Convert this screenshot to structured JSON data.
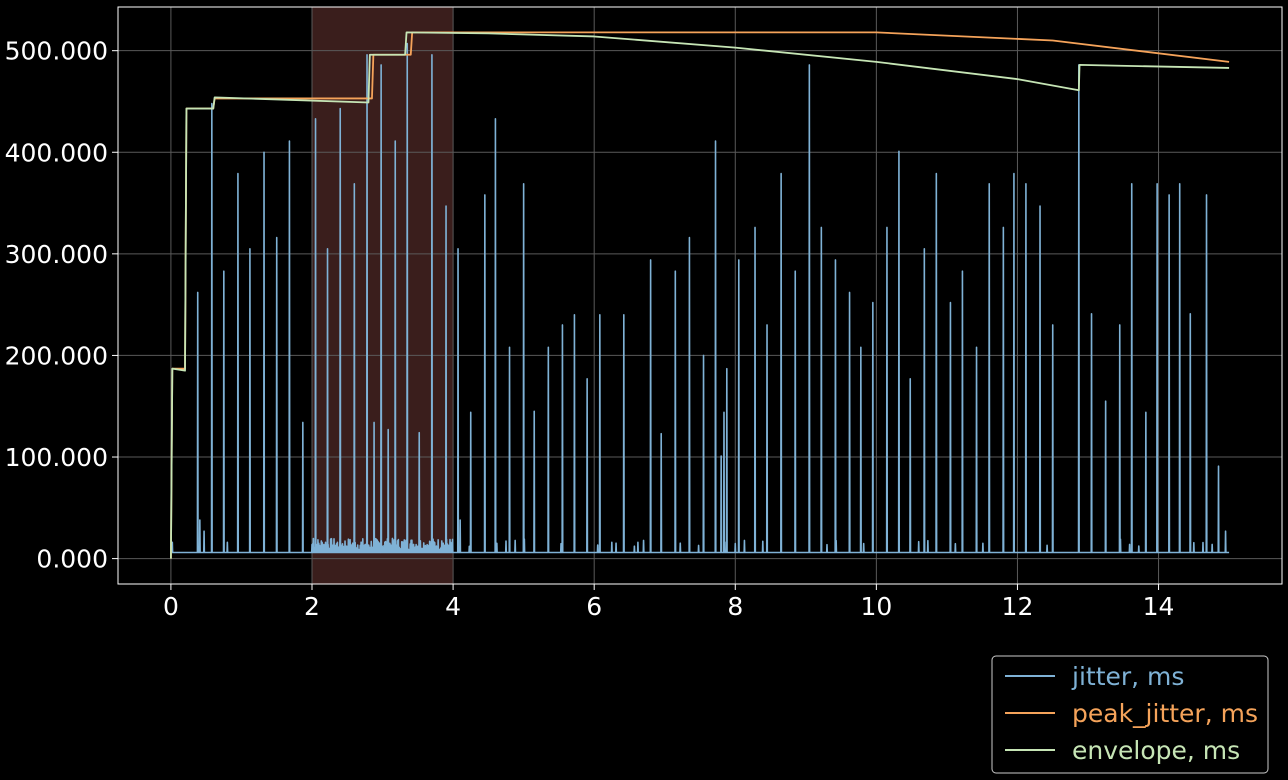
{
  "chart_data": {
    "type": "line",
    "title": "",
    "xlabel": "",
    "ylabel": "",
    "xlim": [
      -0.75,
      15.75
    ],
    "ylim": [
      -25,
      543
    ],
    "x_ticks": [
      0,
      2,
      4,
      6,
      8,
      10,
      12,
      14
    ],
    "x_tick_labels": [
      "0",
      "2",
      "4",
      "6",
      "8",
      "10",
      "12",
      "14"
    ],
    "y_ticks": [
      0,
      100,
      200,
      300,
      400,
      500
    ],
    "y_tick_labels": [
      "0.000",
      "100.000",
      "200.000",
      "300.000",
      "400.000",
      "500.000"
    ],
    "grid": true,
    "background": "#000000",
    "highlight_region": {
      "x_start": 2,
      "x_end": 4,
      "color": "#3a1e1c"
    },
    "legend_position": "below-right",
    "series": [
      {
        "name": "jitter, ms",
        "color": "#7fb2d6",
        "baseline": 6,
        "spikes": [
          [
            0.02,
            16
          ],
          [
            0.38,
            262
          ],
          [
            0.41,
            38
          ],
          [
            0.47,
            27
          ],
          [
            0.58,
            448
          ],
          [
            0.75,
            283
          ],
          [
            0.8,
            16
          ],
          [
            0.95,
            379
          ],
          [
            1.12,
            305
          ],
          [
            1.32,
            400
          ],
          [
            1.5,
            316
          ],
          [
            1.68,
            411
          ],
          [
            1.87,
            134
          ],
          [
            2.05,
            433
          ],
          [
            2.22,
            305
          ],
          [
            2.4,
            443
          ],
          [
            2.6,
            369
          ],
          [
            2.78,
            496
          ],
          [
            2.88,
            134
          ],
          [
            2.98,
            486
          ],
          [
            3.08,
            127
          ],
          [
            3.18,
            411
          ],
          [
            3.35,
            507
          ],
          [
            3.52,
            124
          ],
          [
            3.7,
            496
          ],
          [
            3.9,
            347
          ],
          [
            4.07,
            305
          ],
          [
            4.1,
            38
          ],
          [
            4.25,
            144
          ],
          [
            4.45,
            358
          ],
          [
            4.6,
            433
          ],
          [
            4.8,
            208
          ],
          [
            5.0,
            369
          ],
          [
            5.15,
            145
          ],
          [
            5.35,
            208
          ],
          [
            5.55,
            230
          ],
          [
            5.72,
            240
          ],
          [
            5.9,
            177
          ],
          [
            6.08,
            240
          ],
          [
            6.25,
            16
          ],
          [
            6.42,
            240
          ],
          [
            6.62,
            16
          ],
          [
            6.8,
            294
          ],
          [
            6.95,
            123
          ],
          [
            7.15,
            283
          ],
          [
            7.35,
            316
          ],
          [
            7.55,
            200
          ],
          [
            7.72,
            411
          ],
          [
            7.8,
            101
          ],
          [
            7.84,
            144
          ],
          [
            7.88,
            187
          ],
          [
            8.05,
            294
          ],
          [
            8.28,
            326
          ],
          [
            8.45,
            230
          ],
          [
            8.65,
            379
          ],
          [
            8.85,
            283
          ],
          [
            9.05,
            486
          ],
          [
            9.22,
            326
          ],
          [
            9.42,
            294
          ],
          [
            9.62,
            262
          ],
          [
            9.78,
            208
          ],
          [
            9.95,
            252
          ],
          [
            10.15,
            326
          ],
          [
            10.32,
            401
          ],
          [
            10.48,
            177
          ],
          [
            10.68,
            305
          ],
          [
            10.85,
            379
          ],
          [
            11.05,
            252
          ],
          [
            11.22,
            283
          ],
          [
            11.42,
            208
          ],
          [
            11.6,
            369
          ],
          [
            11.8,
            326
          ],
          [
            11.95,
            379
          ],
          [
            12.12,
            369
          ],
          [
            12.32,
            347
          ],
          [
            12.5,
            230
          ],
          [
            12.87,
            486
          ],
          [
            13.05,
            241
          ],
          [
            13.25,
            155
          ],
          [
            13.45,
            230
          ],
          [
            13.62,
            369
          ],
          [
            13.82,
            144
          ],
          [
            13.98,
            369
          ],
          [
            14.15,
            358
          ],
          [
            14.3,
            369
          ],
          [
            14.45,
            241
          ],
          [
            14.68,
            358
          ],
          [
            14.85,
            91
          ],
          [
            14.95,
            27
          ]
        ],
        "burst_region": [
          2.0,
          4.0
        ]
      },
      {
        "name": "peak_jitter, ms",
        "color": "#f5a35a",
        "x": [
          0,
          0.02,
          0.2,
          0.22,
          0.6,
          0.62,
          2.85,
          2.87,
          3.4,
          3.42,
          10,
          12.5,
          15
        ],
        "y": [
          0,
          187,
          187,
          443,
          443,
          453,
          453,
          496,
          496,
          518,
          518,
          510,
          489
        ]
      },
      {
        "name": "envelope, ms",
        "color": "#c6e5b5",
        "x": [
          0,
          0.02,
          0.2,
          0.22,
          0.6,
          0.62,
          2.8,
          2.82,
          3.32,
          3.34,
          4.5,
          6,
          8,
          10,
          12,
          12.87,
          12.88,
          15
        ],
        "y": [
          0,
          187,
          185,
          443,
          443,
          454,
          449,
          496,
          496,
          518,
          517,
          514,
          503,
          489,
          472,
          461,
          486,
          483
        ]
      }
    ]
  }
}
